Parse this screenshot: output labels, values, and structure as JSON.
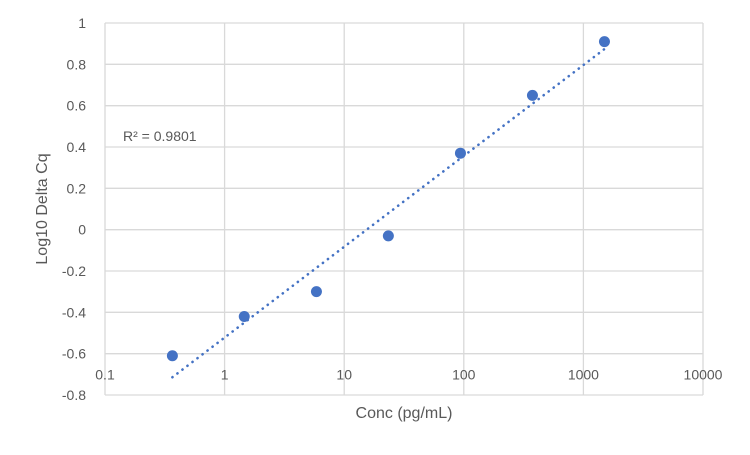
{
  "chart_data": {
    "type": "scatter",
    "title": "",
    "xlabel": "Conc (pg/mL)",
    "ylabel": "Log10 Delta Cq",
    "xscale": "log",
    "xlim": [
      0.1,
      10000
    ],
    "ylim": [
      -0.8,
      1
    ],
    "x_ticks": [
      "0.1",
      "1",
      "10",
      "100",
      "1000",
      "10000"
    ],
    "x_tick_values": [
      0.1,
      1,
      10,
      100,
      1000,
      10000
    ],
    "y_ticks": [
      "1",
      "0.8",
      "0.6",
      "0.4",
      "0.2",
      "0",
      "-0.2",
      "-0.4",
      "-0.6",
      "-0.8"
    ],
    "y_tick_values": [
      1,
      0.8,
      0.6,
      0.4,
      0.2,
      0,
      -0.2,
      -0.4,
      -0.6,
      -0.8
    ],
    "x_axis_crosses_at": -0.7,
    "grid": true,
    "legend": null,
    "series": [
      {
        "name": "Log10 Delta Cq",
        "color": "#4472C4",
        "marker": "circle",
        "x": [
          0.366,
          1.46,
          5.86,
          23.4,
          93.75,
          375,
          1500
        ],
        "y": [
          -0.61,
          -0.42,
          -0.3,
          -0.03,
          0.37,
          0.65,
          0.91
        ]
      }
    ],
    "trendline": {
      "type": "log-linear",
      "style": "dotted",
      "color": "#4472C4",
      "x_start": 0.366,
      "y_start": -0.714,
      "x_end": 1500,
      "y_end": 0.874,
      "r_squared_label": "R² = 0.9801"
    },
    "annotations": [
      {
        "text": "R² = 0.9801",
        "x": 0.3,
        "y": 0.45
      }
    ]
  },
  "colors": {
    "marker": "#4472C4",
    "grid": "#D9D9D9",
    "text": "#595959",
    "background": "#FFFFFF"
  }
}
